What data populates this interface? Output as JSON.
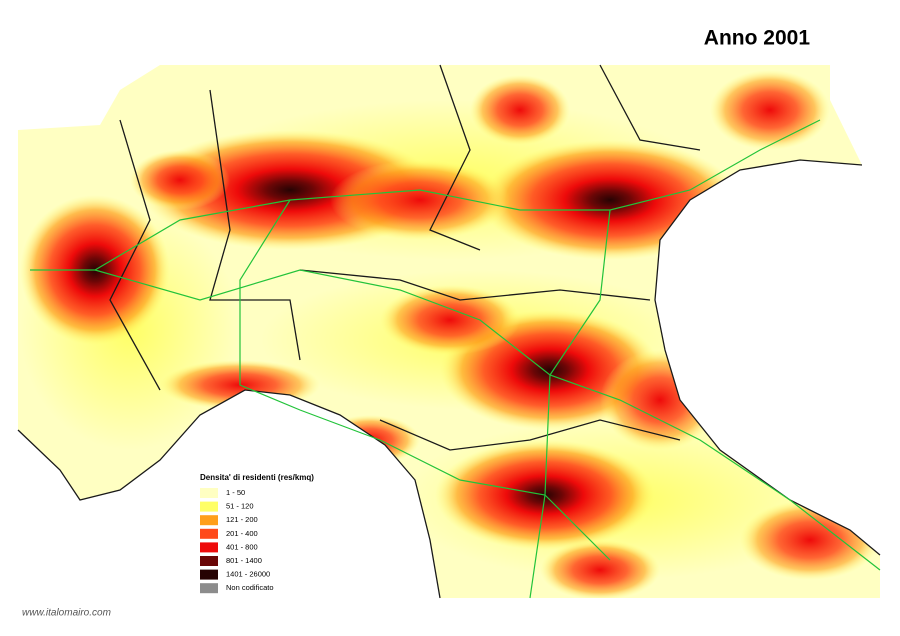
{
  "title": "Anno 2001",
  "legend": {
    "title": "Densita' di residenti (res/kmq)",
    "items": [
      {
        "label": "1 - 50",
        "color": "#ffffc2"
      },
      {
        "label": "51 - 120",
        "color": "#ffff66"
      },
      {
        "label": "121 - 200",
        "color": "#ff9f1a"
      },
      {
        "label": "201 - 400",
        "color": "#ff4a1a"
      },
      {
        "label": "401 - 800",
        "color": "#ee0a0a"
      },
      {
        "label": "801 - 1400",
        "color": "#6a0606"
      },
      {
        "label": "1401 - 26000",
        "color": "#260303"
      },
      {
        "label": "Non codificato",
        "color": "#8c8c8c"
      }
    ]
  },
  "footer": "www.italomairo.com"
}
